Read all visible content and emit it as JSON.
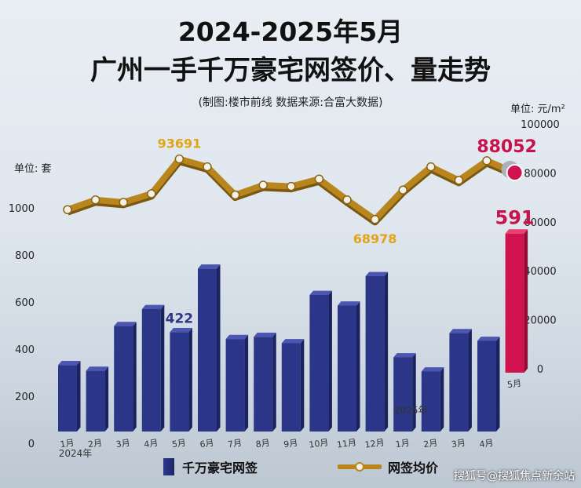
{
  "title_line1": "2024-2025年5月",
  "title_line2": "广州一手千万豪宅网签价、量走势",
  "source_note": "(制图:楼市前线  数据来源:合富大数据)",
  "unit_left": "单位: 套",
  "unit_right": "单位: 元/m²",
  "legend_bar": "千万豪宅网签",
  "legend_line": "网签均价",
  "footer_watermark": "搜狐号@搜狐焦点新余站",
  "colors": {
    "bar": "#2b3688",
    "bar_last": "#d0134f",
    "line": "#b8861c",
    "dot": "#f4f1ea",
    "label_gold": "#e0a417",
    "label_red": "#c8124c"
  },
  "chart_data": {
    "type": "bar+line",
    "categories": [
      "1月",
      "2月",
      "3月",
      "4月",
      "5月",
      "6月",
      "7月",
      "8月",
      "9月",
      "10月",
      "11月",
      "12月",
      "1月",
      "2月",
      "3月",
      "4月",
      "5月"
    ],
    "year_labels": [
      {
        "index": 0,
        "text": "2024年"
      },
      {
        "index": 12,
        "text": "2025年"
      }
    ],
    "series": [
      {
        "name": "千万豪宅网签",
        "type": "bar",
        "axis": "left",
        "values": [
          282,
          258,
          448,
          520,
          422,
          692,
          393,
          402,
          375,
          580,
          535,
          660,
          315,
          255,
          418,
          385,
          591
        ]
      },
      {
        "name": "网签均价",
        "type": "line",
        "axis": "right",
        "values": [
          73000,
          77000,
          76000,
          79500,
          93691,
          90500,
          79000,
          83000,
          82500,
          85500,
          77000,
          68978,
          81000,
          90500,
          85000,
          93000,
          88052
        ]
      }
    ],
    "data_labels": [
      {
        "series": 0,
        "index": 4,
        "text": "422"
      },
      {
        "series": 0,
        "index": 16,
        "text": "591"
      },
      {
        "series": 1,
        "index": 4,
        "text": "93691"
      },
      {
        "series": 1,
        "index": 11,
        "text": "68978"
      },
      {
        "series": 1,
        "index": 16,
        "text": "88052"
      }
    ],
    "left_axis": {
      "ylim": [
        0,
        1000
      ],
      "ticks": [
        0,
        200,
        400,
        600,
        800,
        1000
      ]
    },
    "right_axis": {
      "ylim": [
        0,
        100000
      ],
      "ticks": [
        0,
        20000,
        40000,
        60000,
        80000,
        100000
      ]
    }
  }
}
